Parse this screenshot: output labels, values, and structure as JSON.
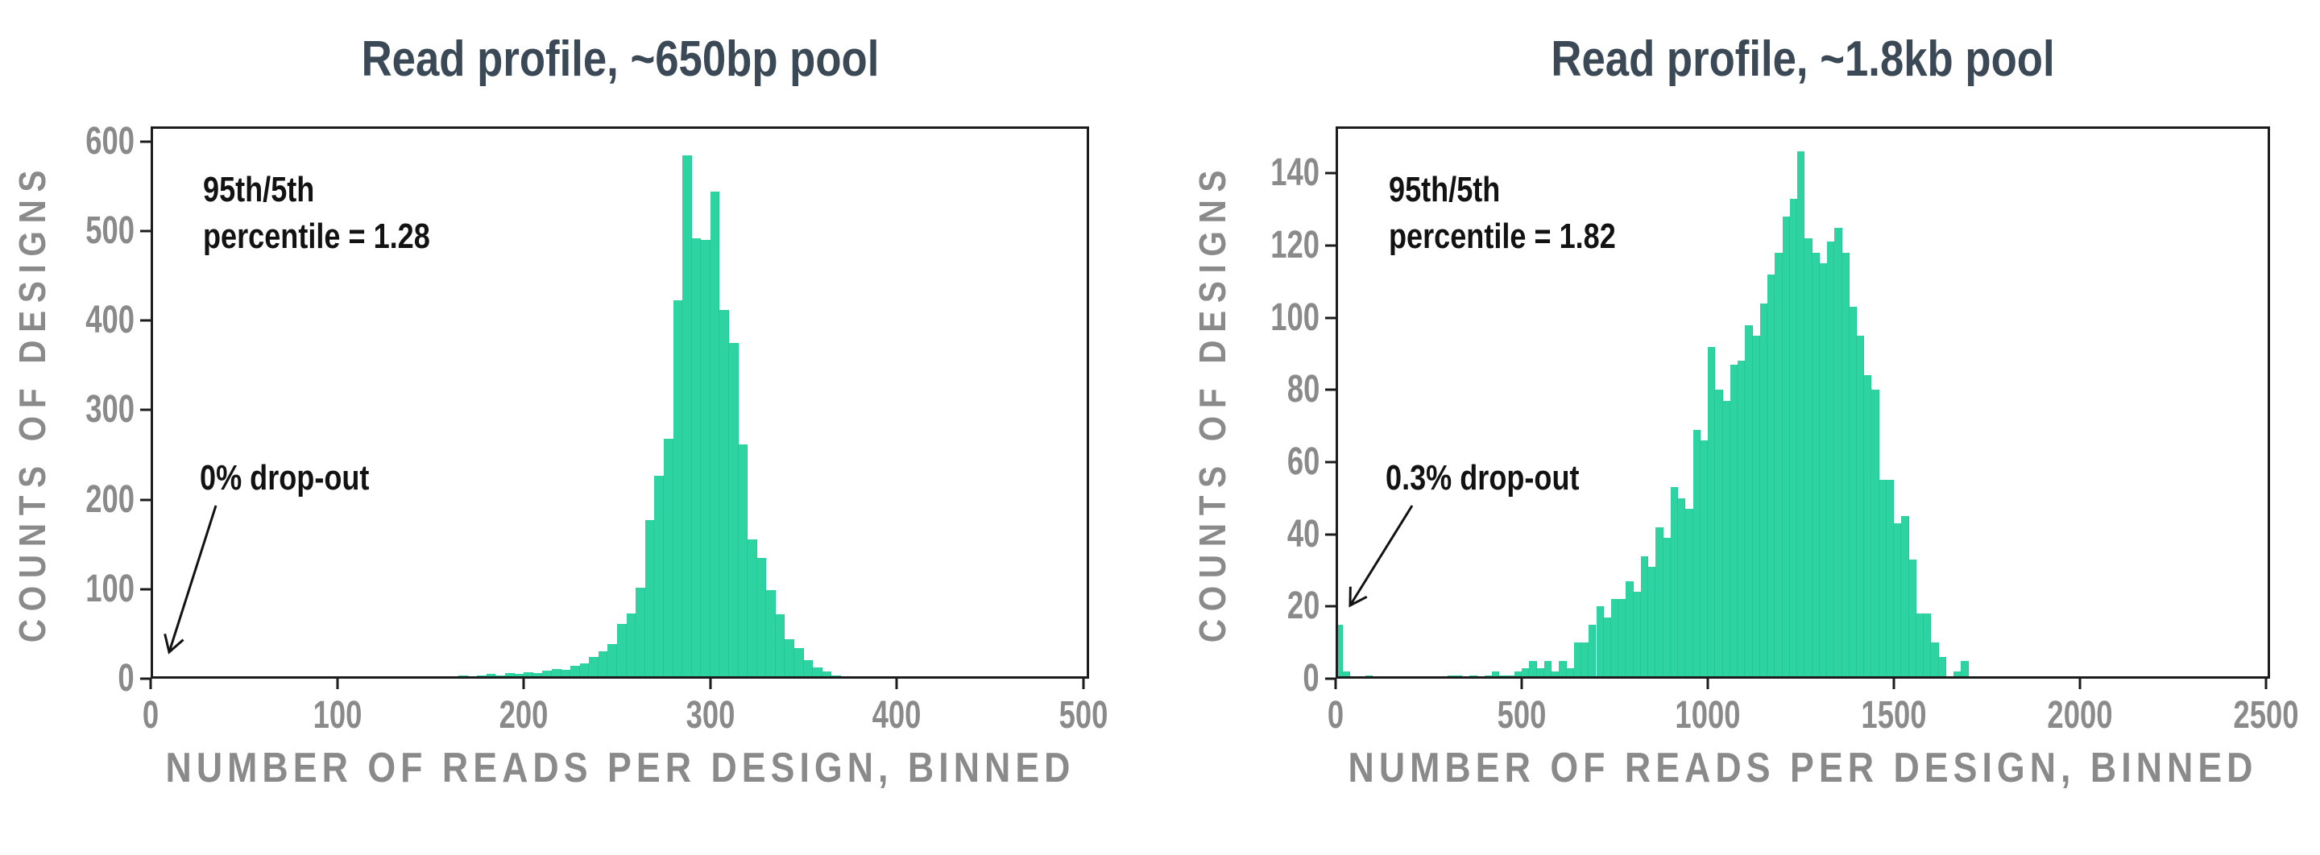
{
  "colors": {
    "bar": "#2dd3a0",
    "title": "#3a4955",
    "axis_text": "#8a8a8a",
    "frame": "#1c1c1c",
    "annotation": "#121212",
    "background": "#ffffff"
  },
  "chart_data": [
    {
      "type": "bar",
      "subtype": "histogram",
      "title": "Read profile, ~650bp pool",
      "xlabel": "NUMBER OF READS PER DESIGN, BINNED",
      "ylabel": "COUNTS OF DESIGNS",
      "bin_start": 125,
      "bin_width": 5,
      "values": [
        2,
        3,
        2,
        3,
        2,
        3,
        2,
        3,
        4,
        3,
        4,
        5,
        4,
        6,
        5,
        7,
        6,
        9,
        11,
        10,
        14,
        17,
        24,
        31,
        39,
        61,
        73,
        102,
        177,
        227,
        268,
        423,
        585,
        492,
        490,
        544,
        412,
        375,
        262,
        156,
        135,
        99,
        72,
        44,
        34,
        21,
        13,
        8,
        4,
        2
      ],
      "xlim": [
        0,
        503
      ],
      "ylim": [
        0,
        617
      ],
      "xticks": [
        0,
        100,
        200,
        300,
        400,
        500
      ],
      "yticks": [
        0,
        100,
        200,
        300,
        400,
        500,
        600
      ],
      "grid": false,
      "legend": "none",
      "annotations": {
        "ratio_line1": "95th/5th",
        "ratio_line2": "percentile = 1.28",
        "dropout": "0% drop-out"
      }
    },
    {
      "type": "bar",
      "subtype": "histogram",
      "title": "Read profile, ~1.8kb pool",
      "xlabel": "NUMBER OF READS PER DESIGN, BINNED",
      "ylabel": "COUNTS OF DESIGNS",
      "bin_start": 0,
      "bin_width": 20,
      "values": [
        15,
        2,
        0,
        0,
        1,
        0,
        0,
        0,
        0,
        0,
        0,
        0,
        0,
        0,
        0,
        1,
        1,
        0,
        1,
        0,
        1,
        2,
        1,
        1,
        2,
        3,
        5,
        3,
        5,
        2,
        5,
        3,
        10,
        10,
        15,
        20,
        17,
        22,
        22,
        27,
        24,
        34,
        31,
        42,
        39,
        53,
        50,
        47,
        69,
        66,
        92,
        80,
        77,
        87,
        88,
        98,
        95,
        104,
        112,
        118,
        128,
        133,
        146,
        122,
        118,
        115,
        121,
        125,
        118,
        103,
        95,
        84,
        80,
        55,
        55,
        43,
        45,
        33,
        18,
        18,
        10,
        6,
        0,
        2,
        5,
        0
      ],
      "xlim": [
        0,
        2510
      ],
      "ylim": [
        0,
        153
      ],
      "xticks": [
        0,
        500,
        1000,
        1500,
        2000,
        2500
      ],
      "yticks": [
        0,
        20,
        40,
        60,
        80,
        100,
        120,
        140
      ],
      "grid": false,
      "legend": "none",
      "annotations": {
        "ratio_line1": "95th/5th",
        "ratio_line2": "percentile = 1.82",
        "dropout": "0.3% drop-out"
      }
    }
  ]
}
